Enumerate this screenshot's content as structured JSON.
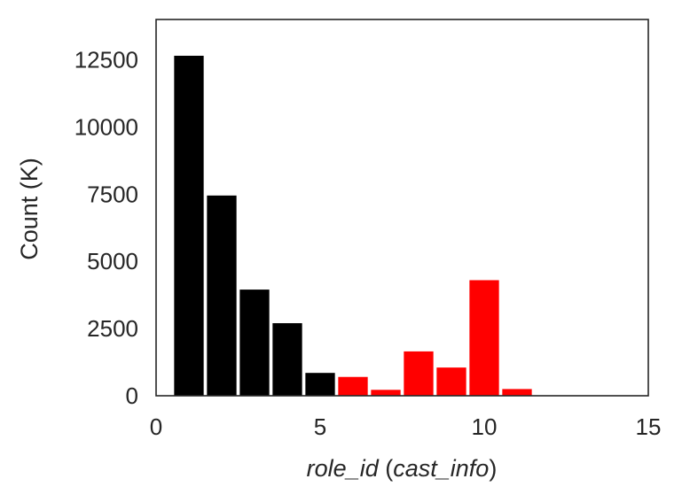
{
  "chart_data": {
    "type": "bar",
    "title": "",
    "xlabel": "role_id (cast_info)",
    "xlabel_parts": [
      "role_id",
      " (",
      "cast_info",
      ")"
    ],
    "ylabel": "Count (K)",
    "xlim": [
      0,
      15
    ],
    "ylim": [
      0,
      14000
    ],
    "xticks": [
      "0",
      "5",
      "10",
      "15"
    ],
    "yticks": [
      "0",
      "2500",
      "5000",
      "7500",
      "10000",
      "12500"
    ],
    "grid": false,
    "legend": "none",
    "x": [
      1,
      2,
      3,
      4,
      5,
      6,
      7,
      8,
      9,
      10,
      11
    ],
    "values": [
      12650,
      7450,
      3950,
      2700,
      850,
      700,
      220,
      1650,
      1050,
      4300,
      250
    ],
    "bar_colors": [
      "#000000",
      "#000000",
      "#000000",
      "#000000",
      "#000000",
      "#ff0000",
      "#ff0000",
      "#ff0000",
      "#ff0000",
      "#ff0000",
      "#ff0000"
    ]
  }
}
